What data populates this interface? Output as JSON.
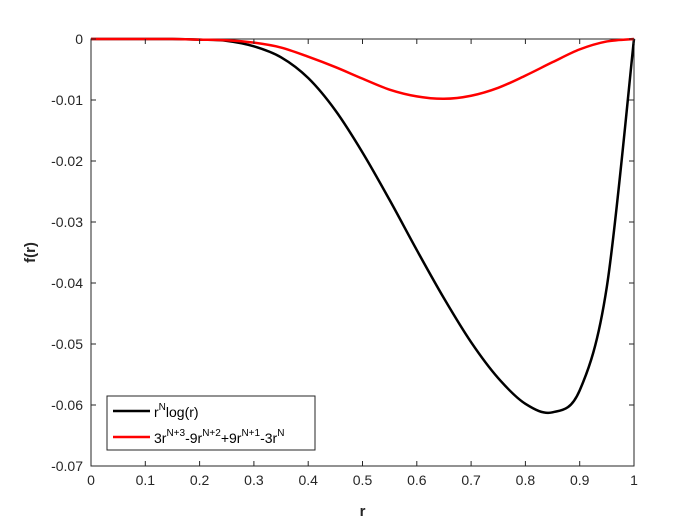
{
  "chart_data": {
    "type": "line",
    "title": "",
    "xlabel": "r",
    "ylabel": "f(r)",
    "xlim": [
      0,
      1
    ],
    "ylim": [
      -0.07,
      0
    ],
    "grid": false,
    "legend_position": "bottom-left",
    "x_ticks": [
      "0",
      "0.1",
      "0.2",
      "0.3",
      "0.4",
      "0.5",
      "0.6",
      "0.7",
      "0.8",
      "0.9",
      "1"
    ],
    "y_ticks": [
      "0",
      "-0.01",
      "-0.02",
      "-0.03",
      "-0.04",
      "-0.05",
      "-0.06",
      "-0.07"
    ],
    "x_tick_values": [
      0,
      0.1,
      0.2,
      0.3,
      0.4,
      0.5,
      0.6,
      0.7,
      0.8,
      0.9,
      1
    ],
    "y_tick_values": [
      0,
      -0.01,
      -0.02,
      -0.03,
      -0.04,
      -0.05,
      -0.06,
      -0.07
    ],
    "x": [
      0,
      0.05,
      0.1,
      0.15,
      0.2,
      0.25,
      0.3,
      0.35,
      0.4,
      0.45,
      0.5,
      0.55,
      0.6,
      0.65,
      0.7,
      0.75,
      0.8,
      0.85,
      0.9,
      0.95,
      1.0
    ],
    "series": [
      {
        "legend": {
          "base": "r",
          "sup1": "N",
          "rest": "log(r)"
        },
        "color": "#000000",
        "values": [
          0,
          0,
          0,
          0,
          -0.0001,
          -0.0003,
          -0.0012,
          -0.003,
          -0.0064,
          -0.0117,
          -0.0186,
          -0.0264,
          -0.0346,
          -0.0425,
          -0.0497,
          -0.0556,
          -0.0598,
          -0.0612,
          -0.0576,
          -0.0406,
          0
        ]
      },
      {
        "legend": {
          "p1": "3r",
          "s1": "N+3",
          "p2": "-9r",
          "s2": "N+2",
          "p3": "+9r",
          "s3": "N+1",
          "p4": "-3r",
          "s4": "N"
        },
        "color": "#ff0000",
        "values": [
          0,
          0,
          0,
          0,
          -0.0001,
          -0.0002,
          -0.0006,
          -0.0014,
          -0.0029,
          -0.0046,
          -0.0065,
          -0.0083,
          -0.0094,
          -0.0098,
          -0.0093,
          -0.008,
          -0.006,
          -0.0038,
          -0.0017,
          -0.0004,
          0
        ]
      }
    ]
  }
}
